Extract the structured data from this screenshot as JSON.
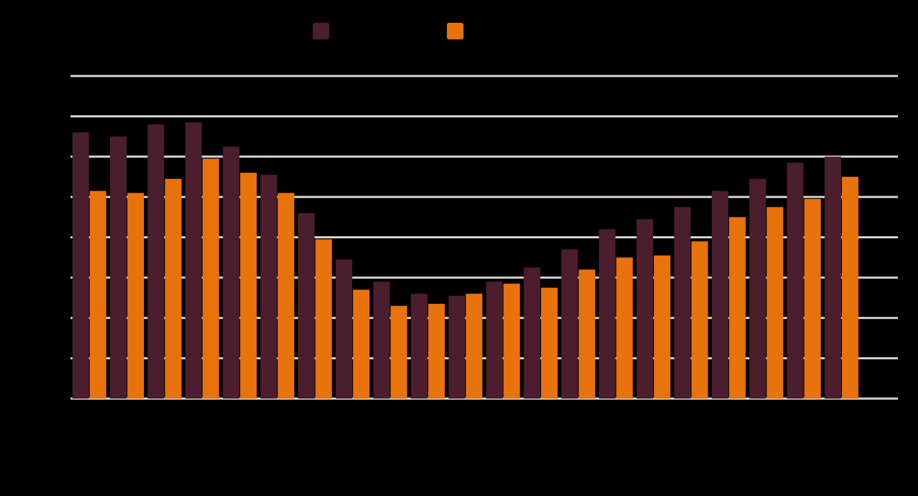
{
  "colors": {
    "background": "#000000",
    "series_1": "#4a1e2c",
    "series_2": "#e8720c",
    "gridline": "#d9d9d9"
  },
  "chart_data": {
    "type": "bar",
    "title": "",
    "xlabel": "",
    "ylabel": "",
    "ylim": [
      0,
      8
    ],
    "grid": true,
    "legend_position": "top-center",
    "categories": [
      "",
      "",
      "",
      "",
      "",
      "",
      "",
      "",
      "",
      "",
      "",
      "",
      "",
      "",
      "",
      "",
      "",
      "",
      "",
      "",
      "",
      ""
    ],
    "series": [
      {
        "color": "#4a1e2c",
        "values": [
          6.6,
          6.5,
          6.8,
          6.85,
          6.25,
          5.55,
          4.6,
          3.45,
          2.9,
          2.6,
          2.55,
          2.9,
          3.25,
          3.7,
          4.2,
          4.45,
          4.75,
          5.15,
          5.45,
          5.85,
          6.0,
          0
        ]
      },
      {
        "color": "#e8720c",
        "values": [
          5.15,
          5.1,
          5.45,
          5.95,
          5.6,
          5.1,
          3.95,
          2.7,
          2.3,
          2.35,
          2.6,
          2.85,
          2.75,
          3.2,
          3.5,
          3.55,
          3.9,
          4.5,
          4.75,
          4.95,
          5.5,
          0
        ]
      }
    ]
  }
}
